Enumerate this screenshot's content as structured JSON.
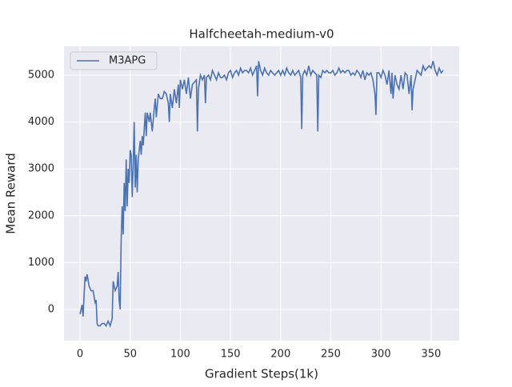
{
  "chart_data": {
    "type": "line",
    "title": "Halfcheetah-medium-v0",
    "xlabel": "Gradient Steps(1k)",
    "ylabel": "Mean Reward",
    "x": [
      0,
      2,
      3,
      5,
      6,
      7,
      9,
      11,
      13,
      15,
      16,
      17,
      18,
      20,
      22,
      24,
      26,
      28,
      30,
      32,
      33,
      35,
      37,
      38,
      39,
      40,
      41,
      42,
      43,
      44,
      45,
      46,
      47,
      48,
      49,
      50,
      51,
      52,
      53,
      54,
      55,
      56,
      57,
      58,
      60,
      61,
      62,
      63,
      65,
      66,
      67,
      69,
      70,
      72,
      74,
      75,
      76,
      78,
      80,
      82,
      84,
      86,
      88,
      89,
      90,
      92,
      94,
      96,
      98,
      99,
      100,
      102,
      104,
      106,
      108,
      110,
      112,
      114,
      116,
      117,
      118,
      120,
      122,
      124,
      125,
      126,
      128,
      130,
      132,
      134,
      136,
      138,
      140,
      142,
      144,
      146,
      148,
      150,
      152,
      154,
      156,
      158,
      160,
      162,
      164,
      166,
      168,
      170,
      172,
      174,
      176,
      177,
      178,
      180,
      182,
      184,
      186,
      188,
      190,
      192,
      194,
      196,
      198,
      200,
      202,
      204,
      206,
      208,
      210,
      212,
      214,
      216,
      218,
      220,
      221,
      222,
      224,
      226,
      228,
      230,
      232,
      234,
      236,
      237,
      238,
      240,
      242,
      244,
      246,
      248,
      250,
      252,
      254,
      256,
      258,
      260,
      262,
      264,
      266,
      268,
      270,
      272,
      274,
      276,
      278,
      280,
      282,
      284,
      286,
      288,
      290,
      292,
      294,
      295,
      296,
      298,
      300,
      302,
      304,
      306,
      308,
      310,
      311,
      312,
      314,
      316,
      318,
      320,
      322,
      324,
      326,
      328,
      330,
      331,
      332,
      334,
      336,
      338,
      340,
      342,
      344,
      346,
      348,
      350,
      352,
      354,
      356,
      358,
      360,
      362
    ],
    "series": [
      {
        "name": "M3APG",
        "color": "#4c72b0",
        "values": [
          -100,
          100,
          -150,
          700,
          600,
          750,
          500,
          400,
          400,
          150,
          200,
          -300,
          -350,
          -350,
          -300,
          -300,
          -350,
          -250,
          -350,
          -200,
          600,
          400,
          500,
          800,
          200,
          0,
          1500,
          2200,
          1600,
          2700,
          2100,
          3200,
          2200,
          3000,
          2700,
          3400,
          3300,
          2400,
          3100,
          4000,
          2600,
          3300,
          2500,
          3200,
          3600,
          3300,
          3700,
          3500,
          4200,
          3700,
          4200,
          4000,
          4200,
          3800,
          4300,
          4500,
          4100,
          4600,
          4500,
          4500,
          4650,
          4600,
          4400,
          4000,
          4600,
          4300,
          4700,
          4400,
          4800,
          4300,
          4900,
          4700,
          4900,
          4600,
          4950,
          4500,
          4800,
          4850,
          4900,
          3800,
          4700,
          5000,
          4900,
          5000,
          4400,
          4950,
          5000,
          4900,
          5100,
          5000,
          4900,
          5050,
          4950,
          4950,
          5000,
          4900,
          5050,
          5100,
          4950,
          5050,
          5100,
          5000,
          5150,
          5050,
          5100,
          5100,
          5050,
          5150,
          5000,
          5100,
          5200,
          4550,
          5300,
          5100,
          5000,
          5150,
          5050,
          5000,
          5100,
          5050,
          5000,
          5050,
          5100,
          5000,
          5100,
          5000,
          5150,
          5050,
          5000,
          5100,
          5000,
          5050,
          5100,
          4950,
          3850,
          5000,
          5100,
          5000,
          5200,
          5000,
          5100,
          5050,
          5000,
          3800,
          5000,
          4950,
          5100,
          5050,
          5100,
          5050,
          5050,
          5100,
          5000,
          5050,
          5150,
          5050,
          5100,
          5050,
          5100,
          5100,
          5000,
          5050,
          5000,
          5100,
          5050,
          4950,
          5100,
          4900,
          5050,
          5000,
          5050,
          4900,
          4600,
          4150,
          5050,
          5050,
          4950,
          5100,
          5000,
          4800,
          5100,
          4600,
          5050,
          4500,
          5000,
          4800,
          4700,
          5000,
          4700,
          5050,
          5000,
          4600,
          5000,
          4250,
          4700,
          4900,
          5100,
          5050,
          5000,
          5200,
          5100,
          5150,
          5200,
          5150,
          5300,
          5100,
          5000,
          5150,
          5050,
          5100
        ]
      }
    ],
    "xlim": [
      -16,
      378
    ],
    "ylim": [
      -666,
      5614
    ],
    "xticks": [
      0,
      50,
      100,
      150,
      200,
      250,
      300,
      350
    ],
    "yticks": [
      0,
      1000,
      2000,
      3000,
      4000,
      5000
    ],
    "grid": true,
    "legend": "upper left"
  }
}
